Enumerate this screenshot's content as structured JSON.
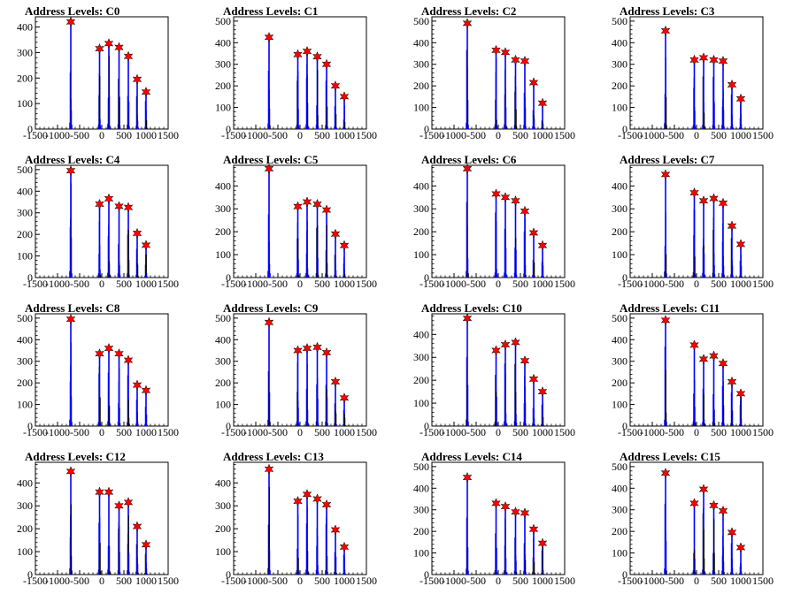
{
  "colors": {
    "bar": "#0000ff",
    "peak_marker": "#ff0000",
    "marker_outline": "#000000",
    "axis": "#000000",
    "background": "#ffffff"
  },
  "chart_data": [
    {
      "type": "bar",
      "title": "Address Levels: C0",
      "xlim": [
        -1500,
        1500
      ],
      "ylim": [
        0,
        440
      ],
      "xticks": [
        -1500,
        -1000,
        -500,
        0,
        500,
        1000,
        1500
      ],
      "yticks": [
        0,
        100,
        200,
        300,
        400
      ],
      "peaks": [
        {
          "x": -700,
          "y": 420
        },
        {
          "x": -50,
          "y": 315
        },
        {
          "x": 160,
          "y": 335
        },
        {
          "x": 390,
          "y": 320
        },
        {
          "x": 600,
          "y": 285
        },
        {
          "x": 800,
          "y": 195
        },
        {
          "x": 1000,
          "y": 145
        }
      ]
    },
    {
      "type": "bar",
      "title": "Address Levels: C1",
      "xlim": [
        -1500,
        1500
      ],
      "ylim": [
        0,
        520
      ],
      "xticks": [
        -1500,
        -1000,
        -500,
        0,
        500,
        1000,
        1500
      ],
      "yticks": [
        0,
        100,
        200,
        300,
        400,
        500
      ],
      "peaks": [
        {
          "x": -700,
          "y": 425
        },
        {
          "x": -50,
          "y": 345
        },
        {
          "x": 160,
          "y": 360
        },
        {
          "x": 390,
          "y": 335
        },
        {
          "x": 600,
          "y": 300
        },
        {
          "x": 800,
          "y": 200
        },
        {
          "x": 1000,
          "y": 150
        }
      ]
    },
    {
      "type": "bar",
      "title": "Address Levels: C2",
      "xlim": [
        -1500,
        1500
      ],
      "ylim": [
        0,
        520
      ],
      "xticks": [
        -1500,
        -1000,
        -500,
        0,
        500,
        1000,
        1500
      ],
      "yticks": [
        0,
        100,
        200,
        300,
        400,
        500
      ],
      "peaks": [
        {
          "x": -700,
          "y": 490
        },
        {
          "x": -50,
          "y": 365
        },
        {
          "x": 160,
          "y": 355
        },
        {
          "x": 390,
          "y": 320
        },
        {
          "x": 600,
          "y": 315
        },
        {
          "x": 800,
          "y": 215
        },
        {
          "x": 1000,
          "y": 120
        }
      ]
    },
    {
      "type": "bar",
      "title": "Address Levels: C3",
      "xlim": [
        -1500,
        1500
      ],
      "ylim": [
        0,
        520
      ],
      "xticks": [
        -1500,
        -1000,
        -500,
        0,
        500,
        1000,
        1500
      ],
      "yticks": [
        0,
        100,
        200,
        300,
        400,
        500
      ],
      "peaks": [
        {
          "x": -700,
          "y": 455
        },
        {
          "x": -50,
          "y": 320
        },
        {
          "x": 160,
          "y": 330
        },
        {
          "x": 390,
          "y": 320
        },
        {
          "x": 600,
          "y": 315
        },
        {
          "x": 800,
          "y": 205
        },
        {
          "x": 1000,
          "y": 140
        }
      ]
    },
    {
      "type": "bar",
      "title": "Address Levels: C4",
      "xlim": [
        -1500,
        1500
      ],
      "ylim": [
        0,
        520
      ],
      "xticks": [
        -1500,
        -1000,
        -500,
        0,
        500,
        1000,
        1500
      ],
      "yticks": [
        0,
        100,
        200,
        300,
        400,
        500
      ],
      "peaks": [
        {
          "x": -700,
          "y": 495
        },
        {
          "x": -50,
          "y": 340
        },
        {
          "x": 160,
          "y": 365
        },
        {
          "x": 390,
          "y": 330
        },
        {
          "x": 600,
          "y": 325
        },
        {
          "x": 800,
          "y": 205
        },
        {
          "x": 1000,
          "y": 150
        }
      ]
    },
    {
      "type": "bar",
      "title": "Address Levels: C5",
      "xlim": [
        -1500,
        1500
      ],
      "ylim": [
        0,
        490
      ],
      "xticks": [
        -1500,
        -1000,
        -500,
        0,
        500,
        1000,
        1500
      ],
      "yticks": [
        0,
        100,
        200,
        300,
        400
      ],
      "peaks": [
        {
          "x": -700,
          "y": 475
        },
        {
          "x": -50,
          "y": 310
        },
        {
          "x": 160,
          "y": 330
        },
        {
          "x": 390,
          "y": 320
        },
        {
          "x": 600,
          "y": 295
        },
        {
          "x": 800,
          "y": 190
        },
        {
          "x": 1000,
          "y": 140
        }
      ]
    },
    {
      "type": "bar",
      "title": "Address Levels: C6",
      "xlim": [
        -1500,
        1500
      ],
      "ylim": [
        0,
        490
      ],
      "xticks": [
        -1500,
        -1000,
        -500,
        0,
        500,
        1000,
        1500
      ],
      "yticks": [
        0,
        100,
        200,
        300,
        400
      ],
      "peaks": [
        {
          "x": -700,
          "y": 475
        },
        {
          "x": -50,
          "y": 365
        },
        {
          "x": 160,
          "y": 350
        },
        {
          "x": 390,
          "y": 335
        },
        {
          "x": 600,
          "y": 290
        },
        {
          "x": 800,
          "y": 195
        },
        {
          "x": 1000,
          "y": 140
        }
      ]
    },
    {
      "type": "bar",
      "title": "Address Levels: C7",
      "xlim": [
        -1500,
        1500
      ],
      "ylim": [
        0,
        490
      ],
      "xticks": [
        -1500,
        -1000,
        -500,
        0,
        500,
        1000,
        1500
      ],
      "yticks": [
        0,
        100,
        200,
        300,
        400
      ],
      "peaks": [
        {
          "x": -700,
          "y": 450
        },
        {
          "x": -50,
          "y": 370
        },
        {
          "x": 160,
          "y": 335
        },
        {
          "x": 390,
          "y": 345
        },
        {
          "x": 600,
          "y": 325
        },
        {
          "x": 800,
          "y": 225
        },
        {
          "x": 1000,
          "y": 145
        }
      ]
    },
    {
      "type": "bar",
      "title": "Address Levels: C8",
      "xlim": [
        -1500,
        1500
      ],
      "ylim": [
        0,
        520
      ],
      "xticks": [
        -1500,
        -1000,
        -500,
        0,
        500,
        1000,
        1500
      ],
      "yticks": [
        0,
        100,
        200,
        300,
        400,
        500
      ],
      "peaks": [
        {
          "x": -700,
          "y": 495
        },
        {
          "x": -50,
          "y": 335
        },
        {
          "x": 160,
          "y": 360
        },
        {
          "x": 390,
          "y": 335
        },
        {
          "x": 600,
          "y": 305
        },
        {
          "x": 800,
          "y": 190
        },
        {
          "x": 1000,
          "y": 165
        }
      ]
    },
    {
      "type": "bar",
      "title": "Address Levels: C9",
      "xlim": [
        -1500,
        1500
      ],
      "ylim": [
        0,
        520
      ],
      "xticks": [
        -1500,
        -1000,
        -500,
        0,
        500,
        1000,
        1500
      ],
      "yticks": [
        0,
        100,
        200,
        300,
        400,
        500
      ],
      "peaks": [
        {
          "x": -700,
          "y": 480
        },
        {
          "x": -50,
          "y": 350
        },
        {
          "x": 160,
          "y": 360
        },
        {
          "x": 390,
          "y": 365
        },
        {
          "x": 600,
          "y": 340
        },
        {
          "x": 800,
          "y": 205
        },
        {
          "x": 1000,
          "y": 130
        }
      ]
    },
    {
      "type": "bar",
      "title": "Address Levels: C10",
      "xlim": [
        -1500,
        1500
      ],
      "ylim": [
        0,
        490
      ],
      "xticks": [
        -1500,
        -1000,
        -500,
        0,
        500,
        1000,
        1500
      ],
      "yticks": [
        0,
        100,
        200,
        300,
        400
      ],
      "peaks": [
        {
          "x": -700,
          "y": 470
        },
        {
          "x": -50,
          "y": 330
        },
        {
          "x": 160,
          "y": 355
        },
        {
          "x": 390,
          "y": 365
        },
        {
          "x": 600,
          "y": 285
        },
        {
          "x": 800,
          "y": 205
        },
        {
          "x": 1000,
          "y": 150
        }
      ]
    },
    {
      "type": "bar",
      "title": "Address Levels: C11",
      "xlim": [
        -1500,
        1500
      ],
      "ylim": [
        0,
        520
      ],
      "xticks": [
        -1500,
        -1000,
        -500,
        0,
        500,
        1000,
        1500
      ],
      "yticks": [
        0,
        100,
        200,
        300,
        400,
        500
      ],
      "peaks": [
        {
          "x": -700,
          "y": 490
        },
        {
          "x": -50,
          "y": 375
        },
        {
          "x": 160,
          "y": 310
        },
        {
          "x": 390,
          "y": 325
        },
        {
          "x": 600,
          "y": 290
        },
        {
          "x": 800,
          "y": 205
        },
        {
          "x": 1000,
          "y": 150
        }
      ]
    },
    {
      "type": "bar",
      "title": "Address Levels: C12",
      "xlim": [
        -1500,
        1500
      ],
      "ylim": [
        0,
        490
      ],
      "xticks": [
        -1500,
        -1000,
        -500,
        0,
        500,
        1000,
        1500
      ],
      "yticks": [
        0,
        100,
        200,
        300,
        400
      ],
      "peaks": [
        {
          "x": -700,
          "y": 450
        },
        {
          "x": -50,
          "y": 360
        },
        {
          "x": 160,
          "y": 360
        },
        {
          "x": 390,
          "y": 300
        },
        {
          "x": 600,
          "y": 315
        },
        {
          "x": 800,
          "y": 210
        },
        {
          "x": 1000,
          "y": 130
        }
      ]
    },
    {
      "type": "bar",
      "title": "Address Levels: C13",
      "xlim": [
        -1500,
        1500
      ],
      "ylim": [
        0,
        490
      ],
      "xticks": [
        -1500,
        -1000,
        -500,
        0,
        500,
        1000,
        1500
      ],
      "yticks": [
        0,
        100,
        200,
        300,
        400
      ],
      "peaks": [
        {
          "x": -700,
          "y": 460
        },
        {
          "x": -50,
          "y": 320
        },
        {
          "x": 160,
          "y": 350
        },
        {
          "x": 390,
          "y": 330
        },
        {
          "x": 600,
          "y": 305
        },
        {
          "x": 800,
          "y": 195
        },
        {
          "x": 1000,
          "y": 120
        }
      ]
    },
    {
      "type": "bar",
      "title": "Address Levels: C14",
      "xlim": [
        -1500,
        1500
      ],
      "ylim": [
        0,
        520
      ],
      "xticks": [
        -1500,
        -1000,
        -500,
        0,
        500,
        1000,
        1500
      ],
      "yticks": [
        0,
        100,
        200,
        300,
        400,
        500
      ],
      "peaks": [
        {
          "x": -700,
          "y": 450
        },
        {
          "x": -50,
          "y": 330
        },
        {
          "x": 160,
          "y": 315
        },
        {
          "x": 390,
          "y": 290
        },
        {
          "x": 600,
          "y": 285
        },
        {
          "x": 800,
          "y": 210
        },
        {
          "x": 1000,
          "y": 145
        }
      ]
    },
    {
      "type": "bar",
      "title": "Address Levels: C15",
      "xlim": [
        -1500,
        1500
      ],
      "ylim": [
        0,
        520
      ],
      "xticks": [
        -1500,
        -1000,
        -500,
        0,
        500,
        1000,
        1500
      ],
      "yticks": [
        0,
        100,
        200,
        300,
        400,
        500
      ],
      "peaks": [
        {
          "x": -700,
          "y": 470
        },
        {
          "x": -50,
          "y": 330
        },
        {
          "x": 160,
          "y": 395
        },
        {
          "x": 390,
          "y": 320
        },
        {
          "x": 600,
          "y": 295
        },
        {
          "x": 800,
          "y": 195
        },
        {
          "x": 1000,
          "y": 125
        }
      ]
    }
  ]
}
